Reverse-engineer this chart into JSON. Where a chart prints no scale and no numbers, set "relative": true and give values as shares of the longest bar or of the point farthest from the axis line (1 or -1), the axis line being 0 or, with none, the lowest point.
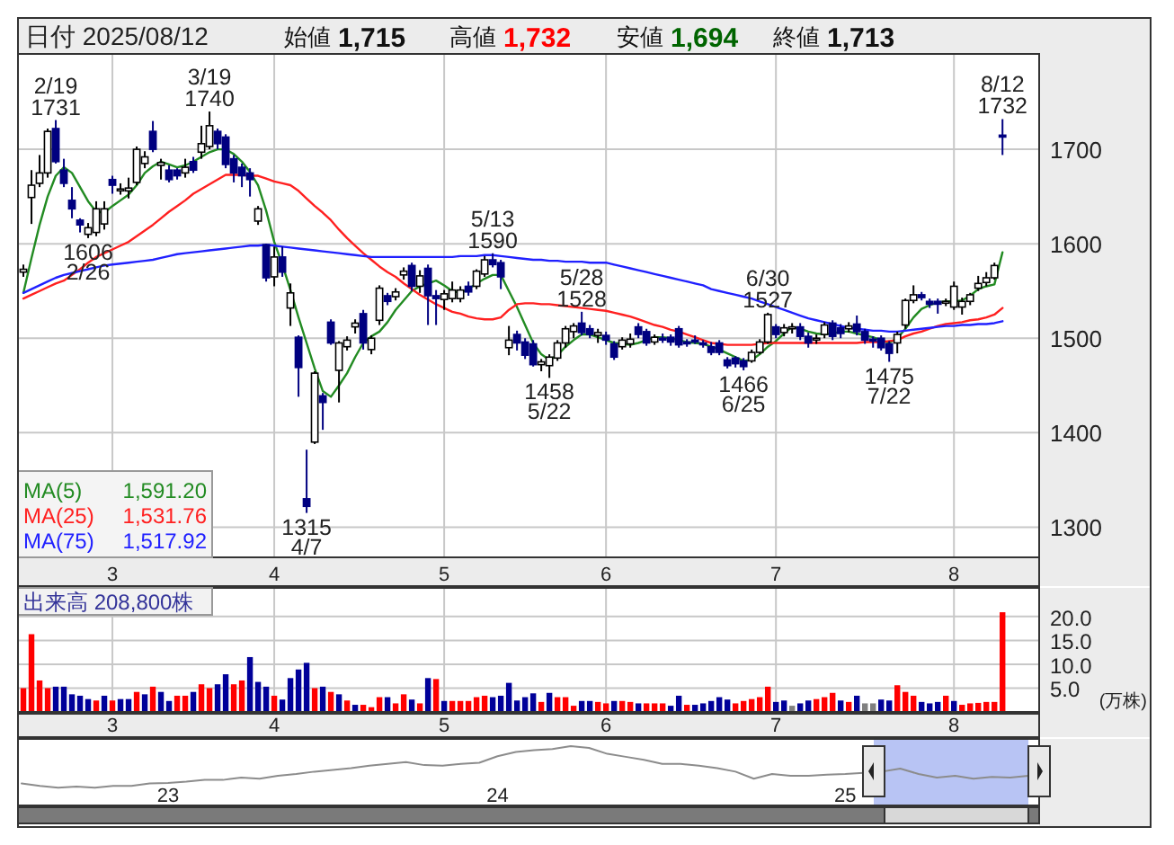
{
  "chart_data": [
    {
      "type": "candlestick",
      "title": "日付 2025/08/12",
      "annotations": [
        "始値",
        "1,715",
        "高値",
        "1,732",
        "安値",
        "1,694",
        "終値",
        "1,713",
        "1,591.20",
        "1,531.76",
        "1,517.92",
        {
          "text": "2/19 1731",
          "y": 1731
        },
        {
          "text": "1606 2/26",
          "y": 1606
        },
        {
          "text": "3/19 1740",
          "y": 1740
        },
        {
          "text": "1315 4/7",
          "y": 1315
        },
        {
          "text": "5/13 1590",
          "y": 1590
        },
        {
          "text": "5/28 1528",
          "y": 1528
        },
        {
          "text": "1458 5/22",
          "y": 1458
        },
        {
          "text": "1466 6/25",
          "y": 1466
        },
        {
          "text": "6/30 1527",
          "y": 1527
        },
        {
          "text": "1475 7/22",
          "y": 1475
        },
        {
          "text": "8/12 1732",
          "y": 1732
        }
      ],
      "categories": [
        null,
        null,
        null,
        null,
        null,
        null,
        null,
        null,
        null,
        null,
        null,
        "3",
        null,
        null,
        null,
        null,
        null,
        null,
        null,
        null,
        null,
        null,
        null,
        null,
        null,
        null,
        null,
        null,
        null,
        null,
        null,
        "4",
        null,
        null,
        null,
        null,
        null,
        null,
        null,
        null,
        null,
        null,
        null,
        null,
        null,
        null,
        null,
        null,
        null,
        null,
        null,
        null,
        "5",
        null,
        null,
        null,
        null,
        null,
        null,
        null,
        null,
        null,
        null,
        null,
        null,
        null,
        null,
        null,
        null,
        null,
        null,
        null,
        "6",
        null,
        null,
        null,
        null,
        null,
        null,
        null,
        null,
        null,
        null,
        null,
        null,
        null,
        null,
        null,
        null,
        null,
        null,
        null,
        null,
        "7",
        null,
        null,
        null,
        null,
        null,
        null,
        null,
        null,
        null,
        null,
        null,
        null,
        null,
        null,
        null,
        null,
        null,
        null,
        null,
        null,
        null,
        "8",
        null,
        null,
        null,
        null,
        null,
        null
      ],
      "ohlc": [
        [
          1570,
          1578,
          1565,
          1573
        ],
        [
          1649,
          1678,
          1621,
          1662
        ],
        [
          1664,
          1694,
          1660,
          1675
        ],
        [
          1675,
          1722,
          1670,
          1719
        ],
        [
          1722,
          1731,
          1685,
          1687
        ],
        [
          1678,
          1690,
          1660,
          1664
        ],
        [
          1646,
          1660,
          1627,
          1637
        ],
        [
          1625,
          1627,
          1612,
          1620
        ],
        [
          1610,
          1622,
          1606,
          1617
        ],
        [
          1612,
          1645,
          1608,
          1637
        ],
        [
          1621,
          1645,
          1615,
          1637
        ],
        [
          1668,
          1672,
          1653,
          1662
        ],
        [
          1657,
          1664,
          1652,
          1658
        ],
        [
          1656,
          1670,
          1648,
          1659
        ],
        [
          1665,
          1703,
          1662,
          1700
        ],
        [
          1685,
          1698,
          1680,
          1692
        ],
        [
          1719,
          1730,
          1697,
          1700
        ],
        [
          1683,
          1690,
          1668,
          1686
        ],
        [
          1678,
          1683,
          1665,
          1668
        ],
        [
          1678,
          1680,
          1668,
          1672
        ],
        [
          1675,
          1690,
          1670,
          1681
        ],
        [
          1687,
          1692,
          1675,
          1678
        ],
        [
          1697,
          1725,
          1690,
          1706
        ],
        [
          1703,
          1740,
          1700,
          1725
        ],
        [
          1719,
          1722,
          1700,
          1706
        ],
        [
          1713,
          1716,
          1680,
          1684
        ],
        [
          1690,
          1694,
          1665,
          1675
        ],
        [
          1681,
          1685,
          1660,
          1672
        ],
        [
          1675,
          1680,
          1650,
          1668
        ],
        [
          1624,
          1640,
          1620,
          1637
        ],
        [
          1599,
          1600,
          1560,
          1564
        ],
        [
          1565,
          1597,
          1555,
          1586
        ],
        [
          1586,
          1597,
          1565,
          1570
        ],
        [
          1532,
          1558,
          1513,
          1548
        ],
        [
          1501,
          1503,
          1438,
          1469
        ],
        [
          1330,
          1382,
          1315,
          1322
        ],
        [
          1390,
          1465,
          1388,
          1463
        ],
        [
          1439,
          1442,
          1403,
          1432
        ],
        [
          1517,
          1520,
          1493,
          1495
        ],
        [
          1466,
          1497,
          1432,
          1495
        ],
        [
          1491,
          1502,
          1487,
          1498
        ],
        [
          1512,
          1520,
          1505,
          1516
        ],
        [
          1526,
          1530,
          1488,
          1495
        ],
        [
          1488,
          1503,
          1483,
          1500
        ],
        [
          1519,
          1556,
          1514,
          1553
        ],
        [
          1545,
          1548,
          1535,
          1539
        ],
        [
          1544,
          1553,
          1540,
          1549
        ],
        [
          1567,
          1575,
          1562,
          1571
        ],
        [
          1577,
          1580,
          1550,
          1555
        ],
        [
          1555,
          1572,
          1548,
          1566
        ],
        [
          1574,
          1578,
          1514,
          1545
        ],
        [
          1545,
          1551,
          1514,
          1542
        ],
        [
          1541,
          1551,
          1530,
          1547
        ],
        [
          1542,
          1560,
          1538,
          1551
        ],
        [
          1542,
          1555,
          1538,
          1551
        ],
        [
          1555,
          1560,
          1545,
          1549
        ],
        [
          1555,
          1573,
          1552,
          1571
        ],
        [
          1568,
          1587,
          1565,
          1583
        ],
        [
          1583,
          1590,
          1575,
          1578
        ],
        [
          1580,
          1583,
          1552,
          1565
        ],
        [
          1490,
          1513,
          1482,
          1498
        ],
        [
          1504,
          1508,
          1487,
          1495
        ],
        [
          1496,
          1500,
          1478,
          1482
        ],
        [
          1494,
          1498,
          1470,
          1472
        ],
        [
          1472,
          1478,
          1465,
          1475
        ],
        [
          1471,
          1483,
          1458,
          1480
        ],
        [
          1479,
          1498,
          1476,
          1495
        ],
        [
          1495,
          1513,
          1490,
          1510
        ],
        [
          1507,
          1516,
          1500,
          1513
        ],
        [
          1516,
          1528,
          1503,
          1506
        ],
        [
          1510,
          1514,
          1500,
          1504
        ],
        [
          1503,
          1510,
          1495,
          1506
        ],
        [
          1503,
          1507,
          1493,
          1498
        ],
        [
          1494,
          1497,
          1477,
          1480
        ],
        [
          1491,
          1501,
          1488,
          1498
        ],
        [
          1494,
          1505,
          1490,
          1499
        ],
        [
          1512,
          1516,
          1500,
          1504
        ],
        [
          1507,
          1510,
          1492,
          1495
        ],
        [
          1496,
          1504,
          1493,
          1501
        ],
        [
          1500,
          1505,
          1495,
          1499
        ],
        [
          1501,
          1504,
          1492,
          1496
        ],
        [
          1510,
          1513,
          1490,
          1493
        ],
        [
          1496,
          1499,
          1491,
          1495
        ],
        [
          1498,
          1503,
          1494,
          1497
        ],
        [
          1495,
          1498,
          1490,
          1494
        ],
        [
          1491,
          1496,
          1482,
          1485
        ],
        [
          1495,
          1498,
          1482,
          1485
        ],
        [
          1477,
          1480,
          1468,
          1471
        ],
        [
          1479,
          1481,
          1469,
          1473
        ],
        [
          1476,
          1479,
          1466,
          1470
        ],
        [
          1476,
          1488,
          1474,
          1485
        ],
        [
          1485,
          1499,
          1483,
          1496
        ],
        [
          1496,
          1527,
          1494,
          1525
        ],
        [
          1512,
          1515,
          1500,
          1504
        ],
        [
          1506,
          1515,
          1502,
          1511
        ],
        [
          1510,
          1516,
          1505,
          1512
        ],
        [
          1512,
          1516,
          1498,
          1502
        ],
        [
          1502,
          1506,
          1490,
          1495
        ],
        [
          1499,
          1504,
          1494,
          1500
        ],
        [
          1504,
          1517,
          1500,
          1514
        ],
        [
          1516,
          1519,
          1498,
          1502
        ],
        [
          1511,
          1515,
          1500,
          1505
        ],
        [
          1510,
          1517,
          1506,
          1513
        ],
        [
          1515,
          1524,
          1503,
          1507
        ],
        [
          1507,
          1510,
          1494,
          1498
        ],
        [
          1499,
          1502,
          1490,
          1497
        ],
        [
          1500,
          1503,
          1487,
          1490
        ],
        [
          1494,
          1497,
          1475,
          1484
        ],
        [
          1495,
          1507,
          1484,
          1504
        ],
        [
          1514,
          1542,
          1510,
          1540
        ],
        [
          1540,
          1556,
          1537,
          1546
        ],
        [
          1546,
          1549,
          1540,
          1543
        ],
        [
          1539,
          1542,
          1532,
          1536
        ],
        [
          1539,
          1542,
          1526,
          1536
        ],
        [
          1538,
          1542,
          1534,
          1539
        ],
        [
          1533,
          1560,
          1530,
          1555
        ],
        [
          1533,
          1543,
          1525,
          1539
        ],
        [
          1539,
          1548,
          1535,
          1546
        ],
        [
          1553,
          1566,
          1550,
          1558
        ],
        [
          1559,
          1570,
          1555,
          1564
        ],
        [
          1564,
          1580,
          1562,
          1577
        ],
        [
          1715,
          1732,
          1694,
          1713
        ]
      ],
      "series": [
        {
          "name": "MA(5)",
          "type": "line",
          "color": "#228b22",
          "values": [
            1548,
            1585,
            1620,
            1650,
            1672,
            1681,
            1675,
            1660,
            1645,
            1634,
            1633,
            1640,
            1646,
            1652,
            1662,
            1675,
            1682,
            1687,
            1684,
            1681,
            1683,
            1687,
            1692,
            1697,
            1700,
            1700,
            1695,
            1687,
            1676,
            1662,
            1635,
            1602,
            1578,
            1551,
            1522,
            1495,
            1468,
            1444,
            1438,
            1450,
            1463,
            1480,
            1495,
            1502,
            1507,
            1517,
            1530,
            1540,
            1550,
            1555,
            1558,
            1561,
            1556,
            1550,
            1548,
            1552,
            1558,
            1563,
            1567,
            1567,
            1550,
            1533,
            1514,
            1495,
            1483,
            1477,
            1482,
            1491,
            1498,
            1504,
            1504,
            1501,
            1498,
            1495,
            1494,
            1493,
            1495,
            1498,
            1501,
            1501,
            1500,
            1498,
            1496,
            1495,
            1494,
            1491,
            1488,
            1484,
            1480,
            1476,
            1477,
            1483,
            1491,
            1497,
            1505,
            1512,
            1510,
            1507,
            1505,
            1504,
            1505,
            1507,
            1507,
            1505,
            1503,
            1501,
            1498,
            1495,
            1500,
            1510,
            1522,
            1531,
            1535,
            1538,
            1539,
            1539,
            1540,
            1545,
            1552,
            1555,
            1557,
            1591
          ]
        },
        {
          "name": "MA(25)",
          "type": "line",
          "color": "#ff2020",
          "values": [
            1542,
            1546,
            1550,
            1554,
            1558,
            1561,
            1567,
            1573,
            1580,
            1586,
            1590,
            1594,
            1598,
            1602,
            1608,
            1614,
            1620,
            1627,
            1634,
            1640,
            1646,
            1653,
            1658,
            1663,
            1668,
            1673,
            1673,
            1673,
            1672,
            1672,
            1669,
            1666,
            1664,
            1662,
            1656,
            1648,
            1640,
            1633,
            1625,
            1615,
            1606,
            1598,
            1590,
            1583,
            1576,
            1570,
            1565,
            1558,
            1552,
            1546,
            1541,
            1536,
            1532,
            1528,
            1526,
            1523,
            1521,
            1520,
            1520,
            1522,
            1530,
            1536,
            1537,
            1537,
            1536,
            1536,
            1535,
            1534,
            1533,
            1532,
            1531,
            1530,
            1529,
            1527,
            1525,
            1523,
            1520,
            1517,
            1514,
            1512,
            1509,
            1507,
            1504,
            1501,
            1498,
            1495,
            1494,
            1493,
            1493,
            1493,
            1493,
            1494,
            1495,
            1495,
            1495,
            1495,
            1495,
            1495,
            1495,
            1495,
            1495,
            1495,
            1495,
            1495,
            1496,
            1496,
            1496,
            1497,
            1498,
            1502,
            1505,
            1507,
            1510,
            1513,
            1515,
            1516,
            1517,
            1519,
            1520,
            1522,
            1525,
            1532
          ]
        },
        {
          "name": "MA(75)",
          "type": "line",
          "color": "#2020ff",
          "values": [
            1548,
            1552,
            1556,
            1560,
            1564,
            1567,
            1569,
            1571,
            1573,
            1575,
            1577,
            1578,
            1579,
            1580,
            1581,
            1582,
            1583,
            1585,
            1587,
            1589,
            1590,
            1591,
            1592,
            1593,
            1594,
            1595,
            1596,
            1597,
            1598,
            1598,
            1599,
            1598,
            1597,
            1596,
            1595,
            1594,
            1593,
            1592,
            1591,
            1590,
            1589,
            1588,
            1587,
            1586,
            1586,
            1586,
            1586,
            1586,
            1586,
            1586,
            1586,
            1586,
            1586,
            1586,
            1587,
            1587,
            1587,
            1588,
            1588,
            1587,
            1586,
            1585,
            1584,
            1583,
            1583,
            1582,
            1582,
            1581,
            1581,
            1581,
            1580,
            1580,
            1580,
            1578,
            1576,
            1574,
            1572,
            1570,
            1568,
            1566,
            1564,
            1562,
            1560,
            1558,
            1556,
            1552,
            1550,
            1548,
            1546,
            1544,
            1542,
            1539,
            1536,
            1533,
            1530,
            1527,
            1524,
            1521,
            1519,
            1517,
            1515,
            1513,
            1511,
            1510,
            1509,
            1508,
            1508,
            1507,
            1507,
            1508,
            1509,
            1510,
            1511,
            1512,
            1513,
            1513,
            1514,
            1514,
            1515,
            1515,
            1516,
            1518
          ]
        }
      ],
      "ylim": [
        1268,
        1801
      ],
      "yticks": [
        1300,
        1400,
        1500,
        1600,
        1700
      ],
      "grid": true,
      "legend": "bottom left"
    },
    {
      "type": "bar",
      "title": "出来高 208,800株",
      "ylabel": "(万株)",
      "categories": [
        null,
        null,
        null,
        null,
        null,
        null,
        null,
        null,
        null,
        null,
        null,
        "3",
        null,
        null,
        null,
        null,
        null,
        null,
        null,
        null,
        null,
        null,
        null,
        null,
        null,
        null,
        null,
        null,
        null,
        null,
        null,
        "4",
        null,
        null,
        null,
        null,
        null,
        null,
        null,
        null,
        null,
        null,
        null,
        null,
        null,
        null,
        null,
        null,
        null,
        null,
        null,
        null,
        "5",
        null,
        null,
        null,
        null,
        null,
        null,
        null,
        null,
        null,
        null,
        null,
        null,
        null,
        null,
        null,
        null,
        null,
        null,
        null,
        "6",
        null,
        null,
        null,
        null,
        null,
        null,
        null,
        null,
        null,
        null,
        null,
        null,
        null,
        null,
        null,
        null,
        null,
        null,
        null,
        null,
        "7",
        null,
        null,
        null,
        null,
        null,
        null,
        null,
        null,
        null,
        null,
        null,
        null,
        null,
        null,
        null,
        null,
        null,
        null,
        null,
        null,
        null,
        "8",
        null,
        null,
        null,
        null,
        null,
        null
      ],
      "values": [
        5.0,
        16.3,
        6.6,
        5.0,
        5.3,
        5.3,
        3.7,
        3.4,
        2.7,
        2.4,
        3.4,
        2.4,
        2.7,
        2.7,
        4.2,
        3.7,
        5.3,
        4.2,
        2.3,
        3.4,
        3.4,
        4.2,
        5.8,
        5.0,
        5.8,
        7.9,
        5.8,
        6.6,
        11.5,
        6.3,
        5.3,
        3.4,
        2.6,
        7.1,
        8.9,
        10.3,
        5.0,
        5.3,
        4.2,
        3.7,
        2.4,
        1.5,
        1.5,
        1.0,
        3.1,
        3.1,
        1.8,
        3.7,
        2.6,
        1.8,
        7.1,
        6.9,
        2.3,
        2.3,
        2.3,
        2.3,
        3.1,
        3.4,
        3.1,
        3.4,
        6.1,
        2.4,
        3.1,
        3.9,
        2.1,
        4.0,
        3.1,
        3.1,
        1.3,
        2.3,
        2.3,
        2.1,
        1.8,
        2.3,
        2.3,
        2.1,
        1.8,
        1.8,
        1.8,
        1.8,
        1.3,
        3.4,
        1.5,
        1.5,
        1.8,
        2.3,
        3.1,
        2.6,
        1.8,
        2.3,
        2.7,
        3.1,
        5.3,
        2.1,
        2.4,
        1.3,
        1.8,
        2.4,
        2.7,
        3.1,
        4.0,
        2.4,
        2.1,
        3.4,
        1.8,
        1.8,
        2.6,
        2.4,
        5.6,
        4.2,
        3.4,
        2.1,
        1.8,
        2.1,
        3.4,
        2.3,
        1.5,
        1.8,
        1.9,
        2.1,
        2.1,
        20.9
      ],
      "colors": [
        "#ff0000",
        "#ff0000",
        "#ff0000",
        "#ff0000",
        "#000099",
        "#000099",
        "#000099",
        "#000099",
        "#000099",
        "#ff0000",
        "#000099",
        "#ff0000",
        "#000099",
        "#000099",
        "#ff0000",
        "#000099",
        "#ff0000",
        "#000099",
        "#000099",
        "#ff0000",
        "#ff0000",
        "#000099",
        "#ff0000",
        "#ff0000",
        "#000099",
        "#000099",
        "#ff0000",
        "#ff0000",
        "#000099",
        "#000099",
        "#000099",
        "#ff0000",
        "#000099",
        "#000099",
        "#000099",
        "#000099",
        "#ff0000",
        "#000099",
        "#ff0000",
        "#000099",
        "#ff0000",
        "#000099",
        "#ff0000",
        "#ff0000",
        "#ff0000",
        "#000099",
        "#ff0000",
        "#ff0000",
        "#000099",
        "#ff0000",
        "#000099",
        "#ff0000",
        "#000099",
        "#ff0000",
        "#ff0000",
        "#ff0000",
        "#ff0000",
        "#ff0000",
        "#000099",
        "#000099",
        "#000099",
        "#000099",
        "#000099",
        "#000099",
        "#ff0000",
        "#000099",
        "#ff0000",
        "#ff0000",
        "#ff0000",
        "#000099",
        "#000099",
        "#ff0000",
        "#ff0000",
        "#000099",
        "#ff0000",
        "#ff0000",
        "#000099",
        "#ff0000",
        "#ff0000",
        "#ff0000",
        "#000099",
        "#000099",
        "#ff0000",
        "#000099",
        "#000099",
        "#000099",
        "#000099",
        "#000099",
        "#ff0000",
        "#ff0000",
        "#ff0000",
        "#ff0000",
        "#ff0000",
        "#000099",
        "#000099",
        "#808080",
        "#000099",
        "#000099",
        "#ff0000",
        "#ff0000",
        "#ff0000",
        "#000099",
        "#ff0000",
        "#000099",
        "#808080",
        "#808080",
        "#000099",
        "#000099",
        "#ff0000",
        "#ff0000",
        "#ff0000",
        "#000099",
        "#000099",
        "#000099",
        "#ff0000",
        "#000099",
        "#ff0000",
        "#ff0000",
        "#ff0000",
        "#ff0000",
        "#ff0000",
        "#ff0000"
      ],
      "ylim": [
        0,
        26
      ],
      "yticks": [
        {
          "value": 5,
          "label": "5.0"
        },
        {
          "value": 10,
          "label": "10.0"
        },
        {
          "value": 15,
          "label": "15.0"
        },
        {
          "value": 20,
          "label": "20.0"
        }
      ],
      "grid": true
    },
    {
      "type": "line",
      "relative": true,
      "color": "#8c8c8c",
      "categories": [
        null,
        null,
        null,
        null,
        null,
        null,
        null,
        null,
        "23",
        null,
        null,
        null,
        null,
        null,
        null,
        null,
        null,
        null,
        null,
        null,
        null,
        null,
        null,
        null,
        null,
        null,
        "24",
        null,
        null,
        null,
        null,
        null,
        null,
        null,
        null,
        null,
        null,
        null,
        null,
        null,
        null,
        null,
        null,
        null,
        null,
        "25",
        null,
        null,
        null,
        null,
        null,
        null,
        null,
        null,
        null,
        null
      ],
      "values": [
        0.37,
        0.33,
        0.3,
        0.32,
        0.3,
        0.33,
        0.33,
        0.37,
        0.38,
        0.4,
        0.43,
        0.43,
        0.47,
        0.45,
        0.5,
        0.53,
        0.57,
        0.6,
        0.63,
        0.67,
        0.7,
        0.73,
        0.68,
        0.67,
        0.7,
        0.72,
        0.83,
        0.9,
        0.93,
        0.95,
        1,
        0.97,
        0.87,
        0.82,
        0.77,
        0.7,
        0.7,
        0.67,
        0.63,
        0.57,
        0.45,
        0.53,
        0.5,
        0.5,
        0.52,
        0.53,
        0.55,
        0.57,
        0.62,
        0.53,
        0.47,
        0.5,
        0.45,
        0.48,
        0.47,
        0.5
      ]
    }
  ]
}
